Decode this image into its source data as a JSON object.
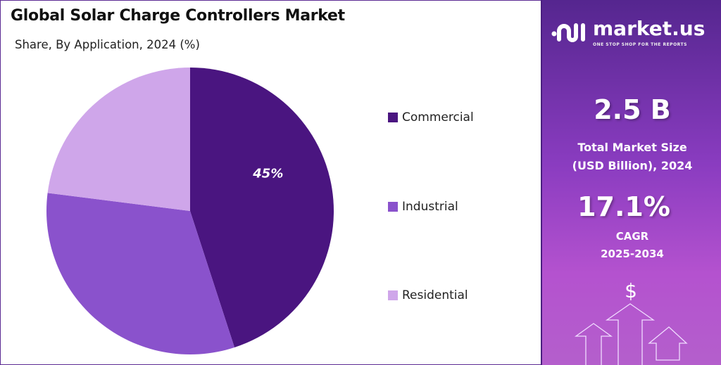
{
  "header": {
    "title": "Global Solar Charge Controllers Market",
    "subtitle": "Share, By Application, 2024 (%)"
  },
  "chart_data": {
    "type": "pie",
    "title": "Global Solar Charge Controllers Market",
    "subtitle": "Share, By Application, 2024 (%)",
    "categories": [
      "Commercial",
      "Industrial",
      "Residential"
    ],
    "values": [
      45,
      32,
      23
    ],
    "data_labels": [
      "45%",
      "",
      ""
    ],
    "colors": [
      "#4a1580",
      "#8a52cc",
      "#cfa6ea"
    ],
    "legend_position": "right"
  },
  "panel": {
    "brand": "market.us",
    "tagline": "ONE STOP SHOP FOR THE REPORTS",
    "market_size": "2.5 B",
    "market_size_label_1": "Total Market Size",
    "market_size_label_2": "(USD Billion), 2024",
    "cagr": "17.1%",
    "cagr_label_1": "CAGR",
    "cagr_label_2": "2025-2034",
    "dollar": "$"
  }
}
